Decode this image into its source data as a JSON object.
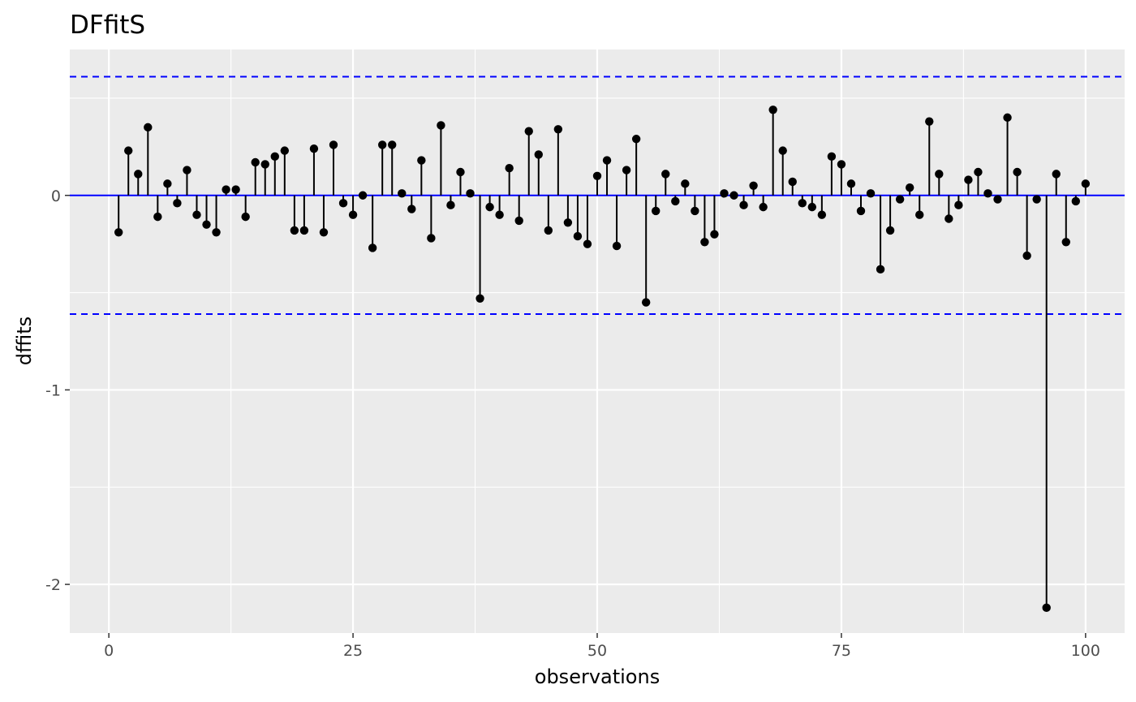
{
  "chart_data": {
    "type": "scatter",
    "style": "lollipop",
    "title": "DFfitS",
    "xlabel": "observations",
    "ylabel": "dffits",
    "xlim": [
      -4,
      104
    ],
    "ylim": [
      -2.25,
      0.75
    ],
    "xticks": [
      0,
      25,
      50,
      75,
      100
    ],
    "yticks": [
      -2,
      -1,
      0
    ],
    "xtick_labels": [
      "0",
      "25",
      "50",
      "75",
      "100"
    ],
    "ytick_labels": [
      "-2",
      "-1",
      "0"
    ],
    "grid": true,
    "panel_background": "#EBEBEB",
    "point_color": "#000000",
    "baseline": {
      "y": 0,
      "color": "#0000FF"
    },
    "thresholds": {
      "values": [
        0.61,
        -0.61
      ],
      "color": "#0000FF",
      "style": "dashed"
    },
    "series": [
      {
        "x": [
          1,
          2,
          3,
          4,
          5,
          6,
          7,
          8,
          9,
          10,
          11,
          12,
          13,
          14,
          15,
          16,
          17,
          18,
          19,
          20,
          21,
          22,
          23,
          24,
          25,
          26,
          27,
          28,
          29,
          30,
          31,
          32,
          33,
          34,
          35,
          36,
          37,
          38,
          39,
          40,
          41,
          42,
          43,
          44,
          45,
          46,
          47,
          48,
          49,
          50,
          51,
          52,
          53,
          54,
          55,
          56,
          57,
          58,
          59,
          60,
          61,
          62,
          63,
          64,
          65,
          66,
          67,
          68,
          69,
          70,
          71,
          72,
          73,
          74,
          75,
          76,
          77,
          78,
          79,
          80,
          81,
          82,
          83,
          84,
          85,
          86,
          87,
          88,
          89,
          90,
          91,
          92,
          93,
          94,
          95,
          96,
          97,
          98,
          99,
          100
        ],
        "values": [
          -0.19,
          0.23,
          0.11,
          0.35,
          -0.11,
          0.06,
          -0.04,
          0.13,
          -0.1,
          -0.15,
          -0.19,
          0.03,
          0.03,
          -0.11,
          0.17,
          0.16,
          0.2,
          0.23,
          -0.18,
          -0.18,
          0.24,
          -0.19,
          0.26,
          -0.04,
          -0.1,
          0.0,
          -0.27,
          0.26,
          0.26,
          0.01,
          -0.07,
          0.18,
          -0.22,
          0.36,
          -0.05,
          0.12,
          0.01,
          -0.53,
          -0.06,
          -0.1,
          0.14,
          -0.13,
          0.33,
          0.21,
          -0.18,
          0.34,
          -0.14,
          -0.21,
          -0.25,
          0.1,
          0.18,
          -0.26,
          0.13,
          0.29,
          -0.55,
          -0.08,
          0.11,
          -0.03,
          0.06,
          -0.08,
          -0.24,
          -0.2,
          0.01,
          0.0,
          -0.05,
          0.05,
          -0.06,
          0.44,
          0.23,
          0.07,
          -0.04,
          -0.06,
          -0.1,
          0.2,
          0.16,
          0.06,
          -0.08,
          0.01,
          -0.38,
          -0.18,
          -0.02,
          0.04,
          -0.1,
          0.38,
          0.11,
          -0.12,
          -0.05,
          0.08,
          0.12,
          0.01,
          -0.02,
          0.4,
          0.12,
          -0.31,
          -0.02,
          -2.12,
          0.11,
          -0.24,
          -0.03,
          0.06
        ]
      }
    ]
  }
}
